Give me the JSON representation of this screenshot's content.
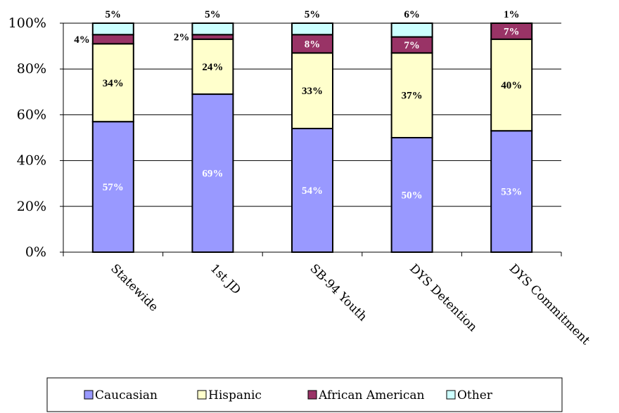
{
  "chart_data": {
    "type": "bar",
    "stacked": true,
    "categories": [
      "Statewide",
      "1st JD",
      "SB-94 Youth",
      "DYS Detention",
      "DYS Commitment"
    ],
    "series": [
      {
        "name": "Caucasian",
        "color": "#9999ff",
        "values": [
          57,
          69,
          54,
          50,
          53
        ],
        "labels": [
          "57%",
          "69%",
          "54%",
          "50%",
          "53%"
        ]
      },
      {
        "name": "Hispanic",
        "color": "#ffffcc",
        "values": [
          34,
          24,
          33,
          37,
          40
        ],
        "labels": [
          "34%",
          "24%",
          "33%",
          "37%",
          "40%"
        ]
      },
      {
        "name": "African American",
        "color": "#993366",
        "values": [
          4,
          2,
          8,
          7,
          7
        ],
        "labels": [
          "4%",
          "2%",
          "8%",
          "7%",
          "7%"
        ]
      },
      {
        "name": "Other",
        "color": "#ccffff",
        "values": [
          5,
          5,
          5,
          6,
          1
        ],
        "labels": [
          "5%",
          "5%",
          "5%",
          "6%",
          "1%"
        ]
      }
    ],
    "ylim": [
      0,
      100
    ],
    "yticks": [
      "0%",
      "20%",
      "40%",
      "60%",
      "80%",
      "100%"
    ],
    "title": "",
    "xlabel": "",
    "ylabel": "",
    "grid": true,
    "legend": "bottom"
  }
}
